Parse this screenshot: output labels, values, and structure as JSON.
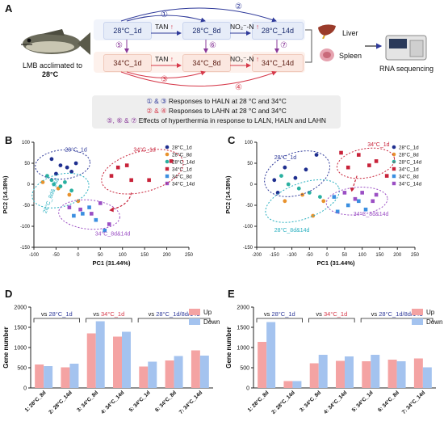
{
  "panels": {
    "a": "A",
    "b": "B",
    "c": "C",
    "d": "D",
    "e": "E"
  },
  "panelA": {
    "fish_caption": "LMB acclimated to",
    "fish_temp": "28°C",
    "row28": [
      "28°C_1d",
      "28°C_8d",
      "28°C_14d"
    ],
    "row34": [
      "34°C_1d",
      "34°C_8d",
      "34°C_14d"
    ],
    "tan_label": "TAN",
    "no2_label": "NO₂⁻-N",
    "up_arrow": "↑",
    "circles": [
      "①",
      "②",
      "③",
      "④",
      "⑤",
      "⑥",
      "⑦"
    ],
    "organs": [
      "Liver",
      "Spleen"
    ],
    "rnaseq": "RNA sequencing",
    "summary": [
      {
        "prefix": "① & ③",
        "text": "Responses to HALN at 28 °C  and 34°C",
        "color": "#2f3a9a"
      },
      {
        "prefix": "② & ④",
        "text": "Responses to LAHN at 28 °C and 34°C",
        "color": "#2f3a9a"
      },
      {
        "prefix": "⑤,  ⑥ & ⑦",
        "text": "Effects of hyperthermia in response to LALN, HALN and LAHN",
        "color": "#8a3a9a"
      }
    ]
  },
  "colors": {
    "blue": "#2f3a9a",
    "red": "#d6394a",
    "up": "#f4a3a3",
    "down": "#a4c3ef",
    "cyan": "#2ab0c0",
    "purple": "#9b4fc4",
    "orange": "#e8922d"
  },
  "pca_legend": [
    {
      "label": "28°C_1d",
      "color": "#1f2f8f",
      "shape": "circle"
    },
    {
      "label": "28°C_8d",
      "color": "#e8922d",
      "shape": "circle"
    },
    {
      "label": "28°C_14d",
      "color": "#2ab0a0",
      "shape": "circle"
    },
    {
      "label": "34°C_1d",
      "color": "#c8233a",
      "shape": "square"
    },
    {
      "label": "34°C_8d",
      "color": "#3b8fe0",
      "shape": "square"
    },
    {
      "label": "34°C_14d",
      "color": "#9b4fc4",
      "shape": "square"
    }
  ],
  "chart_data": [
    {
      "type": "scatter",
      "panel": "B",
      "xlabel": "PC1 (31.44%)",
      "ylabel": "PC2 (14.38%)",
      "xlim": [
        -100,
        250
      ],
      "ylim": [
        -150,
        100
      ],
      "xticks": [
        -100,
        -50,
        0,
        50,
        100,
        150,
        200,
        250
      ],
      "yticks": [
        -150,
        -100,
        -50,
        0,
        50,
        100
      ],
      "series": [
        {
          "name": "28°C_1d",
          "points": [
            [
              -60,
              60
            ],
            [
              -40,
              45
            ],
            [
              -25,
              40
            ],
            [
              -50,
              25
            ],
            [
              -15,
              30
            ],
            [
              -5,
              50
            ]
          ]
        },
        {
          "name": "28°C_8d",
          "points": [
            [
              -80,
              5
            ],
            [
              -45,
              -10
            ],
            [
              -20,
              -25
            ],
            [
              0,
              -40
            ]
          ]
        },
        {
          "name": "28°C_14d",
          "points": [
            [
              -70,
              20
            ],
            [
              -55,
              0
            ],
            [
              -40,
              -5
            ],
            [
              -15,
              -15
            ],
            [
              -30,
              5
            ],
            [
              -60,
              10
            ]
          ]
        },
        {
          "name": "34°C_1d",
          "points": [
            [
              90,
              40
            ],
            [
              75,
              20
            ],
            [
              110,
              45
            ],
            [
              120,
              10
            ],
            [
              210,
              55
            ],
            [
              160,
              10
            ]
          ]
        },
        {
          "name": "34°C_8d",
          "points": [
            [
              10,
              -70
            ],
            [
              25,
              -55
            ],
            [
              -10,
              -75
            ],
            [
              40,
              -85
            ],
            [
              60,
              -110
            ]
          ]
        },
        {
          "name": "34°C_14d",
          "points": [
            [
              -20,
              -55
            ],
            [
              5,
              -60
            ],
            [
              30,
              -70
            ],
            [
              50,
              -45
            ],
            [
              70,
              -95
            ]
          ]
        }
      ],
      "annotations": [
        "28°C_1d",
        "34°C_1d",
        "28°C_8d& 14d",
        "34°C_8d&14d"
      ]
    },
    {
      "type": "scatter",
      "panel": "C",
      "xlabel": "PC1 (31.44%)",
      "ylabel": "PC2 (14.38%)",
      "xlim": [
        -200,
        250
      ],
      "ylim": [
        -150,
        100
      ],
      "xticks": [
        -200,
        -150,
        -100,
        -50,
        0,
        50,
        100,
        150,
        200,
        250
      ],
      "yticks": [
        -150,
        -100,
        -50,
        0,
        50,
        100
      ],
      "series": [
        {
          "name": "28°C_1d",
          "points": [
            [
              -150,
              10
            ],
            [
              -120,
              40
            ],
            [
              -60,
              35
            ],
            [
              -30,
              70
            ],
            [
              -90,
              15
            ],
            [
              -140,
              -20
            ]
          ]
        },
        {
          "name": "28°C_8d",
          "points": [
            [
              -120,
              -40
            ],
            [
              -70,
              -25
            ],
            [
              -40,
              -75
            ],
            [
              -10,
              -40
            ]
          ]
        },
        {
          "name": "28°C_14d",
          "points": [
            [
              -130,
              20
            ],
            [
              -110,
              0
            ],
            [
              -80,
              -10
            ],
            [
              -50,
              -20
            ],
            [
              -20,
              -30
            ]
          ]
        },
        {
          "name": "34°C_1d",
          "points": [
            [
              40,
              75
            ],
            [
              90,
              70
            ],
            [
              120,
              45
            ],
            [
              170,
              20
            ],
            [
              60,
              40
            ],
            [
              140,
              55
            ]
          ]
        },
        {
          "name": "34°C_8d",
          "points": [
            [
              20,
              -30
            ],
            [
              60,
              -50
            ],
            [
              90,
              -40
            ],
            [
              110,
              -60
            ],
            [
              30,
              -65
            ]
          ]
        },
        {
          "name": "34°C_14d",
          "points": [
            [
              50,
              -20
            ],
            [
              80,
              -35
            ],
            [
              100,
              -20
            ],
            [
              130,
              -40
            ],
            [
              140,
              -25
            ]
          ]
        }
      ],
      "annotations": [
        "28°C_1d",
        "34°C_1d",
        "28°C_8d&14d",
        "34°C_8d&14d"
      ]
    },
    {
      "type": "bar",
      "panel": "D",
      "ylabel": "Gene number",
      "ylim": [
        0,
        2000
      ],
      "yticks": [
        0,
        500,
        1000,
        1500,
        2000
      ],
      "categories": [
        "1: 28°C_8d",
        "2: 28°C_14d",
        "3: 34°C_8d",
        "4: 34°C_14d",
        "5: 34°C_1d",
        "6: 34°C_8d",
        "7: 34°C_14d"
      ],
      "series": [
        {
          "name": "Up",
          "values": [
            580,
            510,
            1350,
            1270,
            530,
            680,
            930
          ]
        },
        {
          "name": "Down",
          "values": [
            540,
            600,
            1650,
            1390,
            650,
            790,
            800
          ]
        }
      ],
      "group_labels": [
        {
          "prefix": "vs ",
          "name": "28°C_1d",
          "color": "#2f3a9a",
          "span": [
            0,
            1
          ]
        },
        {
          "prefix": "vs ",
          "name": "34°C_1d",
          "color": "#d6394a",
          "span": [
            2,
            3
          ]
        },
        {
          "prefix": "vs ",
          "name": "28°C_1d/8d/14d",
          "color": "#2f3a9a",
          "span": [
            4,
            6
          ]
        }
      ]
    },
    {
      "type": "bar",
      "panel": "E",
      "ylabel": "Gene number",
      "ylim": [
        0,
        2000
      ],
      "yticks": [
        0,
        500,
        1000,
        1500,
        2000
      ],
      "categories": [
        "1: 28°C_8d",
        "2: 28°C_14d",
        "3: 34°C_8d",
        "4: 34°C_14d",
        "5: 34°C_1d",
        "6: 34°C_8d",
        "7: 34°C_14d"
      ],
      "series": [
        {
          "name": "Up",
          "values": [
            1140,
            170,
            610,
            670,
            660,
            700,
            730
          ]
        },
        {
          "name": "Down",
          "values": [
            1630,
            170,
            820,
            780,
            820,
            660,
            510
          ]
        }
      ],
      "group_labels": [
        {
          "prefix": "vs ",
          "name": "28°C_1d",
          "color": "#2f3a9a",
          "span": [
            0,
            1
          ]
        },
        {
          "prefix": "vs ",
          "name": "34°C_1d",
          "color": "#d6394a",
          "span": [
            2,
            3
          ]
        },
        {
          "prefix": "vs ",
          "name": "28°C_1d/8d/14d",
          "color": "#2f3a9a",
          "span": [
            4,
            6
          ]
        }
      ]
    }
  ]
}
